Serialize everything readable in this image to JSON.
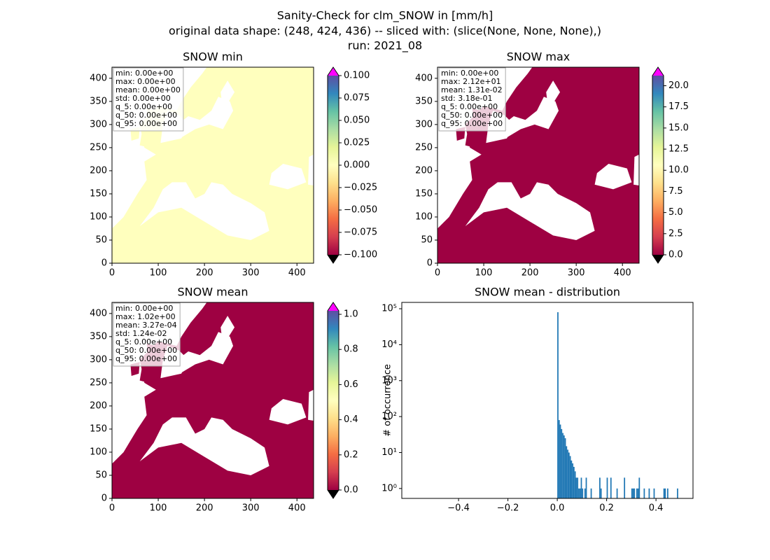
{
  "figure_title": [
    "Sanity-Check for clm_SNOW in [mm/h]",
    "original data shape: (248, 424, 436) -- sliced with: (slice(None, None, None),)",
    "run: 2021_08"
  ],
  "chart_data": [
    {
      "type": "heatmap",
      "title": "SNOW min",
      "xlim": [
        0,
        436
      ],
      "ylim": [
        0,
        424
      ],
      "xticks": [
        0,
        100,
        200,
        300,
        400
      ],
      "yticks": [
        0,
        50,
        100,
        150,
        200,
        250,
        300,
        350,
        400
      ],
      "color": "#ffffbe",
      "colormap": [
        "#9e0142",
        "#d53e4f",
        "#f46d43",
        "#fdae61",
        "#fee08b",
        "#ffffbf",
        "#e6f598",
        "#abdda4",
        "#66c2a5",
        "#3288bd",
        "#5e4fa2"
      ],
      "over_color": "#ff00ff",
      "under_color": "#000000",
      "clim": [
        -0.1,
        0.1
      ],
      "cticks": [
        {
          "value": -0.1,
          "label": "−0.100"
        },
        {
          "value": -0.075,
          "label": "−0.075"
        },
        {
          "value": -0.05,
          "label": "−0.050"
        },
        {
          "value": -0.025,
          "label": "−0.025"
        },
        {
          "value": 0,
          "label": "0.000"
        },
        0.025,
        {
          "value": 0.05,
          "label": "0.050"
        },
        0.075,
        {
          "value": 0.1,
          "label": "0.100"
        }
      ],
      "stats": [
        "min: 0.00e+00",
        "max: 0.00e+00",
        "mean: 0.00e+00",
        "std: 0.00e+00",
        "q_5: 0.00e+00",
        "q_50: 0.00e+00",
        "q_95: 0.00e+00"
      ]
    },
    {
      "type": "heatmap",
      "title": "SNOW max",
      "xlim": [
        0,
        436
      ],
      "ylim": [
        0,
        424
      ],
      "xticks": [
        0,
        100,
        200,
        300,
        400
      ],
      "yticks": [
        0,
        50,
        100,
        150,
        200,
        250,
        300,
        350,
        400
      ],
      "color": "#9e0142",
      "colormap": [
        "#9e0142",
        "#d53e4f",
        "#f46d43",
        "#fdae61",
        "#fee08b",
        "#ffffbf",
        "#e6f598",
        "#abdda4",
        "#66c2a5",
        "#3288bd",
        "#5e4fa2"
      ],
      "over_color": "#ff00ff",
      "under_color": "#000000",
      "clim": [
        0,
        21.2
      ],
      "cticks": [
        {
          "value": 0,
          "label": "0.0"
        },
        2.5,
        {
          "value": 5,
          "label": "5.0"
        },
        7.5,
        {
          "value": 10,
          "label": "10.0"
        },
        12.5,
        {
          "value": 15,
          "label": "15.0"
        },
        17.5,
        {
          "value": 20,
          "label": "20.0"
        }
      ],
      "stats": [
        "min: 0.00e+00",
        "max: 2.12e+01",
        "mean: 1.31e-02",
        "std: 3.18e-01",
        "q_5: 0.00e+00",
        "q_50: 0.00e+00",
        "q_95: 0.00e+00"
      ]
    },
    {
      "type": "heatmap",
      "title": "SNOW mean",
      "xlim": [
        0,
        436
      ],
      "ylim": [
        0,
        424
      ],
      "xticks": [
        0,
        100,
        200,
        300,
        400
      ],
      "yticks": [
        0,
        50,
        100,
        150,
        200,
        250,
        300,
        350,
        400
      ],
      "color": "#9e0142",
      "colormap": [
        "#9e0142",
        "#d53e4f",
        "#f46d43",
        "#fdae61",
        "#fee08b",
        "#ffffbf",
        "#e6f598",
        "#abdda4",
        "#66c2a5",
        "#3288bd",
        "#5e4fa2"
      ],
      "over_color": "#ff00ff",
      "under_color": "#000000",
      "clim": [
        0,
        1.02
      ],
      "cticks": [
        {
          "value": 0,
          "label": "0.0"
        },
        0.2,
        0.4,
        0.6,
        0.8,
        {
          "value": 1,
          "label": "1.0"
        }
      ],
      "stats": [
        "min: 0.00e+00",
        "max: 1.02e+00",
        "mean: 3.27e-04",
        "std: 1.24e-02",
        "q_5: 0.00e+00",
        "q_50: 0.00e+00",
        "q_95: 0.00e+00"
      ]
    },
    {
      "type": "histogram",
      "title": "SNOW mean - distribution",
      "ylabel": "# of occurrence",
      "color": "#1f77b4",
      "log_y": true,
      "xlim": [
        -0.63,
        0.55
      ],
      "ylim": [
        0.53,
        150000
      ],
      "xticks": [
        {
          "value": -0.4,
          "label": "−0.4"
        },
        {
          "value": -0.2,
          "label": "−0.2"
        },
        {
          "value": 0,
          "label": "0.0"
        },
        0.2,
        0.4
      ],
      "yticks": [
        {
          "value": 1,
          "label": "10⁰"
        },
        {
          "value": 10,
          "label": "10¹"
        },
        {
          "value": 100,
          "label": "10²"
        },
        {
          "value": 1000,
          "label": "10³"
        },
        {
          "value": 10000,
          "label": "10⁴"
        },
        {
          "value": 100000,
          "label": "10⁵"
        }
      ],
      "bins": [
        0,
        0.005,
        0.01,
        0.015,
        0.02,
        0.025,
        0.03,
        0.035,
        0.04,
        0.045,
        0.05,
        0.055,
        0.06,
        0.065,
        0.07,
        0.075,
        0.08,
        0.085,
        0.09,
        0.095,
        0.1,
        0.105,
        0.11,
        0.115,
        0.12,
        0.125,
        0.13,
        0.135,
        0.14,
        0.145,
        0.15,
        0.155,
        0.16,
        0.165,
        0.17,
        0.175,
        0.18,
        0.185,
        0.19,
        0.195,
        0.2,
        0.205,
        0.21,
        0.215,
        0.22,
        0.225,
        0.23,
        0.235,
        0.24,
        0.245,
        0.25,
        0.255,
        0.26,
        0.265,
        0.27,
        0.275,
        0.28,
        0.285,
        0.29,
        0.295,
        0.3,
        0.305,
        0.31,
        0.315,
        0.32,
        0.325,
        0.33,
        0.335,
        0.34,
        0.345,
        0.35,
        0.355,
        0.36,
        0.365,
        0.37,
        0.375,
        0.38,
        0.385,
        0.39,
        0.395,
        0.4,
        0.405,
        0.41,
        0.415,
        0.42,
        0.425,
        0.43,
        0.435,
        0.44,
        0.445,
        0.45,
        0.455,
        0.46,
        0.465,
        0.47,
        0.475,
        0.48,
        0.485,
        0.49
      ],
      "counts": [
        80000,
        80,
        60,
        45,
        35,
        30,
        25,
        15,
        12,
        10,
        8,
        6,
        5,
        4,
        3,
        2,
        2,
        1,
        1,
        2,
        1,
        0,
        1,
        2,
        0,
        0,
        0,
        1,
        0,
        0,
        0,
        0,
        0,
        0,
        2,
        1,
        0,
        0,
        0,
        0,
        2,
        0,
        0,
        2,
        0,
        0,
        0,
        0,
        1,
        0,
        0,
        0,
        0,
        0,
        2,
        0,
        0,
        0,
        0,
        0,
        1,
        1,
        1,
        0,
        1,
        1,
        2,
        0,
        0,
        0,
        1,
        0,
        0,
        0,
        1,
        0,
        0,
        0,
        1,
        0,
        0,
        0,
        0,
        0,
        0,
        0,
        1,
        1,
        0,
        1,
        0,
        0,
        0,
        0,
        0,
        0,
        0,
        1
      ]
    }
  ]
}
